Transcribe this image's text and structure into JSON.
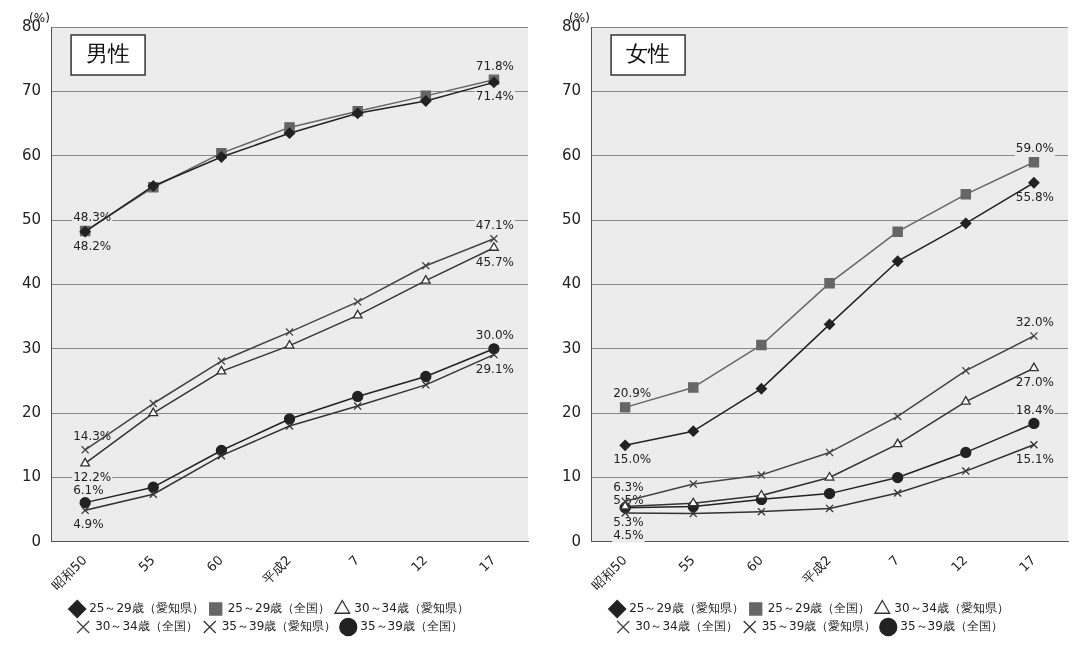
{
  "chart_data": [
    {
      "type": "line",
      "title": "男性",
      "ylabel": "(%)",
      "categories": [
        "昭和50",
        "55",
        "60",
        "平成2",
        "7",
        "12",
        "17"
      ],
      "ylim": [
        0,
        80
      ],
      "yticks": [
        0,
        10,
        20,
        30,
        40,
        50,
        60,
        70,
        80
      ],
      "grid": "y",
      "legend": "bottom",
      "series": [
        {
          "name": "25～29歳（愛知県）",
          "color": "#222222",
          "marker": "diamond",
          "values": [
            48.2,
            55.3,
            59.8,
            63.5,
            66.6,
            68.5,
            71.4
          ],
          "value_labels": [
            "48.2%",
            null,
            null,
            null,
            null,
            null,
            "71.4%"
          ]
        },
        {
          "name": "25～29歳（全国）",
          "color": "#666666",
          "marker": "square",
          "values": [
            48.3,
            55.1,
            60.4,
            64.4,
            66.9,
            69.3,
            71.8
          ],
          "value_labels": [
            "48.3%",
            null,
            null,
            null,
            null,
            null,
            "71.8%"
          ]
        },
        {
          "name": "30～34歳（愛知県）",
          "color": "#333333",
          "marker": "triangle",
          "values": [
            12.2,
            20.0,
            26.5,
            30.5,
            35.2,
            40.6,
            45.7
          ],
          "value_labels": [
            "12.2%",
            null,
            null,
            null,
            null,
            null,
            "45.7%"
          ]
        },
        {
          "name": "30～34歳（全国）",
          "color": "#444444",
          "marker": "cross",
          "values": [
            14.3,
            21.5,
            28.1,
            32.6,
            37.3,
            42.9,
            47.1
          ],
          "value_labels": [
            "14.3%",
            null,
            null,
            null,
            null,
            null,
            "47.1%"
          ]
        },
        {
          "name": "35～39歳（愛知県）",
          "color": "#333333",
          "marker": "cross",
          "values": [
            4.9,
            7.4,
            13.4,
            18.0,
            21.1,
            24.4,
            29.1
          ],
          "value_labels": [
            "4.9%",
            null,
            null,
            null,
            null,
            null,
            "29.1%"
          ]
        },
        {
          "name": "35～39歳（全国）",
          "color": "#222222",
          "marker": "circle",
          "values": [
            6.1,
            8.5,
            14.2,
            19.1,
            22.6,
            25.7,
            30.0
          ],
          "value_labels": [
            "6.1%",
            null,
            null,
            null,
            null,
            null,
            "30.0%"
          ]
        }
      ]
    },
    {
      "type": "line",
      "title": "女性",
      "ylabel": "(%)",
      "categories": [
        "昭和50",
        "55",
        "60",
        "平成2",
        "7",
        "12",
        "17"
      ],
      "ylim": [
        0,
        80
      ],
      "yticks": [
        0,
        10,
        20,
        30,
        40,
        50,
        60,
        70,
        80
      ],
      "grid": "y",
      "legend": "bottom",
      "series": [
        {
          "name": "25～29歳（愛知県）",
          "color": "#222222",
          "marker": "diamond",
          "values": [
            15.0,
            17.2,
            23.8,
            33.8,
            43.6,
            49.5,
            55.8
          ],
          "value_labels": [
            "15.0%",
            null,
            null,
            null,
            null,
            null,
            "55.8%"
          ]
        },
        {
          "name": "25～29歳（全国）",
          "color": "#666666",
          "marker": "square",
          "values": [
            20.9,
            24.0,
            30.6,
            40.2,
            48.2,
            54.0,
            59.0
          ],
          "value_labels": [
            "20.9%",
            null,
            null,
            null,
            null,
            null,
            "59.0%"
          ]
        },
        {
          "name": "30～34歳（愛知県）",
          "color": "#333333",
          "marker": "triangle",
          "values": [
            5.5,
            6.0,
            7.2,
            10.0,
            15.2,
            21.8,
            27.0
          ],
          "value_labels": [
            "5.5%",
            null,
            null,
            null,
            null,
            null,
            "27.0%"
          ]
        },
        {
          "name": "30～34歳（全国）",
          "color": "#444444",
          "marker": "cross",
          "values": [
            6.3,
            9.0,
            10.4,
            13.9,
            19.5,
            26.6,
            32.0
          ],
          "value_labels": [
            "6.3%",
            null,
            null,
            null,
            null,
            null,
            "32.0%"
          ]
        },
        {
          "name": "35～39歳（愛知県）",
          "color": "#333333",
          "marker": "cross",
          "values": [
            4.5,
            4.4,
            4.7,
            5.2,
            7.6,
            11.0,
            15.1
          ],
          "value_labels": [
            "4.5%",
            null,
            null,
            null,
            null,
            null,
            "15.1%"
          ]
        },
        {
          "name": "35～39歳（全国）",
          "color": "#222222",
          "marker": "circle",
          "values": [
            5.3,
            5.5,
            6.6,
            7.5,
            10.0,
            13.9,
            18.4
          ],
          "value_labels": [
            "5.3%",
            null,
            null,
            null,
            null,
            null,
            "18.4%"
          ]
        }
      ]
    }
  ]
}
